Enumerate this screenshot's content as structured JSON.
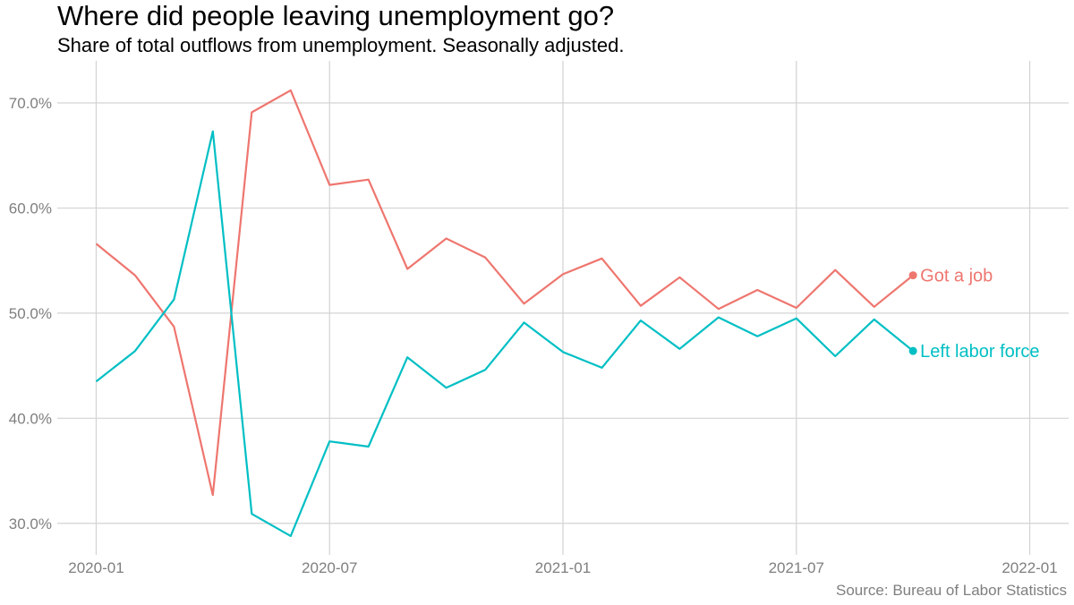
{
  "title": "Where did people leaving unemployment go?",
  "subtitle": "Share of total outflows from unemployment. Seasonally adjusted.",
  "caption": "Source: Bureau of Labor Statistics",
  "chart_data": {
    "type": "line",
    "title": "Where did people leaving unemployment go?",
    "subtitle": "Share of total outflows from unemployment. Seasonally adjusted.",
    "xlabel": "",
    "ylabel": "",
    "x": [
      "2020-01",
      "2020-02",
      "2020-03",
      "2020-04",
      "2020-05",
      "2020-06",
      "2020-07",
      "2020-08",
      "2020-09",
      "2020-10",
      "2020-11",
      "2020-12",
      "2021-01",
      "2021-02",
      "2021-03",
      "2021-04",
      "2021-05",
      "2021-06",
      "2021-07",
      "2021-08",
      "2021-09",
      "2021-10"
    ],
    "series": [
      {
        "name": "Got a job",
        "color": "#ee766f",
        "values": [
          56.6,
          53.6,
          48.7,
          32.7,
          69.1,
          71.2,
          62.2,
          62.7,
          54.2,
          57.1,
          55.3,
          50.9,
          53.7,
          55.2,
          50.7,
          53.4,
          50.4,
          52.2,
          50.5,
          54.1,
          50.6,
          53.6
        ]
      },
      {
        "name": "Left labor force",
        "color": "#00bfc4",
        "values": [
          43.5,
          46.4,
          51.3,
          67.3,
          30.9,
          28.8,
          37.8,
          37.3,
          45.8,
          42.9,
          44.6,
          49.1,
          46.3,
          44.8,
          49.3,
          46.6,
          49.6,
          47.8,
          49.5,
          45.9,
          49.4,
          46.4
        ]
      }
    ],
    "x_ticks": [
      "2020-01",
      "2020-07",
      "2021-01",
      "2021-07",
      "2022-01"
    ],
    "y_ticks": [
      "30.0%",
      "40.0%",
      "50.0%",
      "60.0%",
      "70.0%"
    ],
    "xlim": [
      "2019-12",
      "2022-02"
    ],
    "ylim": [
      27,
      74
    ],
    "grid": true,
    "legend": "direct labels at line ends"
  }
}
